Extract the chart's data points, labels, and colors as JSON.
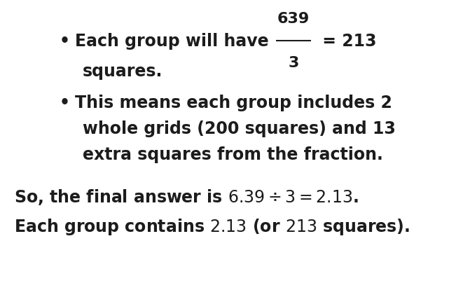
{
  "bg_color": "#ffffff",
  "text_color": "#1c1c1c",
  "fig_width": 6.51,
  "fig_height": 4.04,
  "dpi": 100,
  "font_size": 17,
  "font_family": "DejaVu Sans",
  "font_weight": "bold",
  "bullet": "•",
  "bullet1_prefix": "Each group will have ",
  "bullet1_num": "639",
  "bullet1_den": "3",
  "bullet1_eq": " = 213",
  "bullet1_cont": "squares.",
  "bullet2_l1": "This means each group includes 2",
  "bullet2_l2": "whole grids (200 squares) and 13",
  "bullet2_l3": "extra squares from the fraction.",
  "conc1": "So, the final answer is $6.39 \\div 3 = 2.13$.",
  "conc2": "Each group contains $2.13$ (or $213$ squares)."
}
